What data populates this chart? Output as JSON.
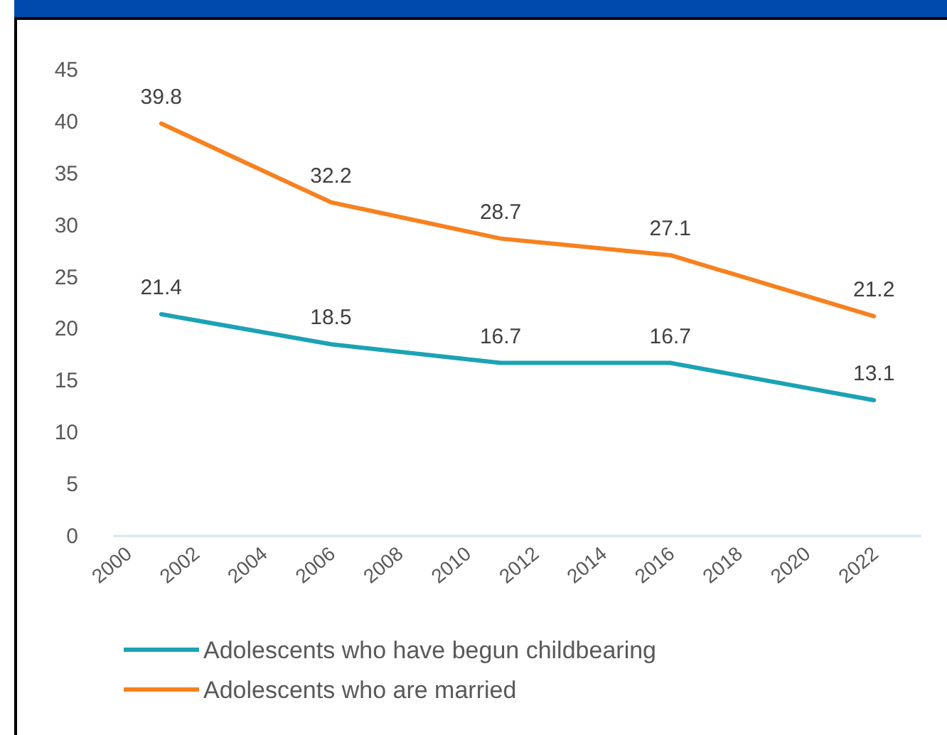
{
  "chart_data": {
    "type": "line",
    "x": [
      2001,
      2006,
      2011,
      2016,
      2022
    ],
    "series": [
      {
        "name": "Adolescents who have begun childbearing",
        "color": "#1ba3b4",
        "values": [
          21.4,
          18.5,
          16.7,
          16.7,
          13.1
        ]
      },
      {
        "name": "Adolescents who are married",
        "color": "#f7811f",
        "values": [
          39.8,
          32.2,
          28.7,
          27.1,
          21.2
        ]
      }
    ],
    "xlim": [
      1999.6,
      2023.4
    ],
    "xticks": [
      2000,
      2002,
      2004,
      2006,
      2008,
      2010,
      2012,
      2014,
      2016,
      2018,
      2020,
      2022
    ],
    "ylim": [
      0,
      45
    ],
    "yticks": [
      0,
      5,
      10,
      15,
      20,
      25,
      30,
      35,
      40,
      45
    ],
    "data_labels": true,
    "legend": "bottom",
    "marker": "none",
    "line_style": "solid",
    "grid": false
  }
}
